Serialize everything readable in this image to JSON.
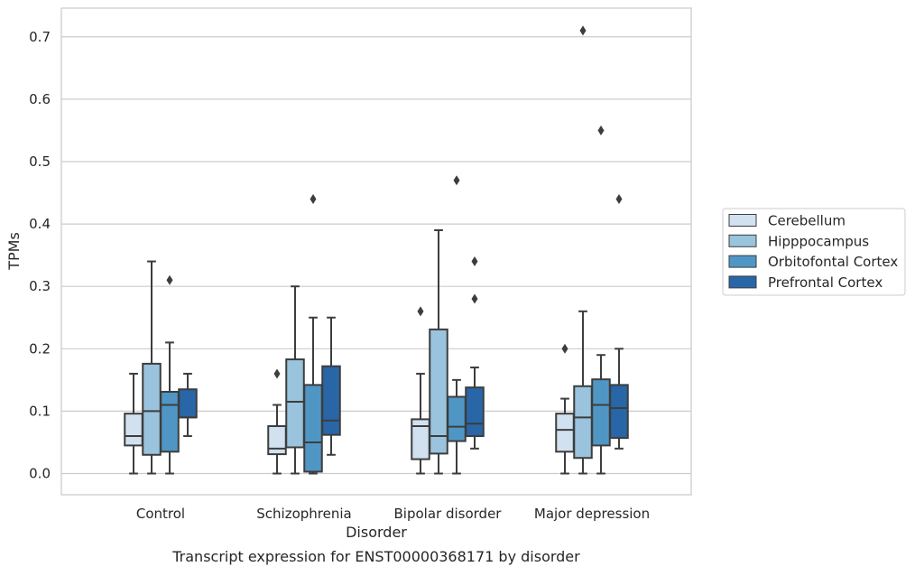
{
  "caption": "Transcript expression for ENST00000368171 by disorder",
  "chart_data": {
    "type": "box",
    "xlabel": "Disorder",
    "ylabel": "TPMs",
    "ylim": [
      -0.034,
      0.746
    ],
    "yticks": [
      0.0,
      0.1,
      0.2,
      0.3,
      0.4,
      0.5,
      0.6,
      0.7
    ],
    "ytick_labels": [
      "0.0",
      "0.1",
      "0.2",
      "0.3",
      "0.4",
      "0.5",
      "0.6",
      "0.7"
    ],
    "grid": true,
    "legend_placement": "right",
    "categories": [
      "Control",
      "Schizophrenia",
      "Bipolar disorder",
      "Major depression"
    ],
    "series": [
      {
        "name": "Cerebellum",
        "color": "#d1e1f0",
        "boxes": [
          {
            "whislo": 0.0,
            "q1": 0.045,
            "med": 0.06,
            "q3": 0.096,
            "whishi": 0.16,
            "fliers": []
          },
          {
            "whislo": 0.0,
            "q1": 0.031,
            "med": 0.04,
            "q3": 0.076,
            "whishi": 0.11,
            "fliers": [
              0.16
            ]
          },
          {
            "whislo": 0.0,
            "q1": 0.023,
            "med": 0.076,
            "q3": 0.087,
            "whishi": 0.16,
            "fliers": [
              0.26
            ]
          },
          {
            "whislo": 0.0,
            "q1": 0.035,
            "med": 0.07,
            "q3": 0.096,
            "whishi": 0.12,
            "fliers": [
              0.2
            ]
          }
        ]
      },
      {
        "name": "Hipppocampus",
        "color": "#9ac3dd",
        "boxes": [
          {
            "whislo": 0.0,
            "q1": 0.03,
            "med": 0.1,
            "q3": 0.176,
            "whishi": 0.34,
            "fliers": []
          },
          {
            "whislo": 0.0,
            "q1": 0.042,
            "med": 0.115,
            "q3": 0.183,
            "whishi": 0.3,
            "fliers": []
          },
          {
            "whislo": 0.0,
            "q1": 0.032,
            "med": 0.06,
            "q3": 0.231,
            "whishi": 0.39,
            "fliers": []
          },
          {
            "whislo": 0.0,
            "q1": 0.025,
            "med": 0.09,
            "q3": 0.14,
            "whishi": 0.26,
            "fliers": [
              0.71
            ]
          }
        ]
      },
      {
        "name": "Orbitofontal Cortex",
        "color": "#5096c5",
        "boxes": [
          {
            "whislo": 0.0,
            "q1": 0.035,
            "med": 0.11,
            "q3": 0.131,
            "whishi": 0.21,
            "fliers": [
              0.31
            ]
          },
          {
            "whislo": 0.0,
            "q1": 0.003,
            "med": 0.05,
            "q3": 0.142,
            "whishi": 0.25,
            "fliers": [
              0.44
            ]
          },
          {
            "whislo": 0.0,
            "q1": 0.052,
            "med": 0.075,
            "q3": 0.123,
            "whishi": 0.15,
            "fliers": [
              0.47
            ]
          },
          {
            "whislo": 0.0,
            "q1": 0.045,
            "med": 0.11,
            "q3": 0.151,
            "whishi": 0.19,
            "fliers": [
              0.55
            ]
          }
        ]
      },
      {
        "name": "Prefrontal Cortex",
        "color": "#2866a8",
        "boxes": [
          {
            "whislo": 0.06,
            "q1": 0.09,
            "med": 0.09,
            "q3": 0.135,
            "whishi": 0.16,
            "fliers": []
          },
          {
            "whislo": 0.03,
            "q1": 0.062,
            "med": 0.085,
            "q3": 0.172,
            "whishi": 0.25,
            "fliers": []
          },
          {
            "whislo": 0.04,
            "q1": 0.06,
            "med": 0.08,
            "q3": 0.138,
            "whishi": 0.17,
            "fliers": [
              0.28,
              0.34
            ]
          },
          {
            "whislo": 0.04,
            "q1": 0.057,
            "med": 0.105,
            "q3": 0.142,
            "whishi": 0.2,
            "fliers": [
              0.44
            ]
          }
        ]
      }
    ]
  }
}
